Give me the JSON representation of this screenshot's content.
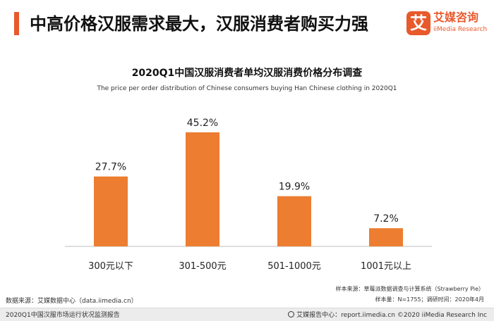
{
  "header": {
    "title": "中高价格汉服需求最大，汉服消费者购买力强",
    "accent_color": "#e8592b"
  },
  "logo": {
    "mark": "艾",
    "name_cn": "艾媒咨询",
    "name_en": "iiMedia Research"
  },
  "chart_data": {
    "type": "bar",
    "title": "2020Q1中国汉服消费者单均汉服消费价格分布调查",
    "subtitle": "The price per order distribution of Chinese consumers buying Han Chinese clothing in 2020Q1",
    "categories": [
      "300元以下",
      "301-500元",
      "501-1000元",
      "1001元以上"
    ],
    "values": [
      27.7,
      45.2,
      19.9,
      7.2
    ],
    "value_labels": [
      "27.7%",
      "45.2%",
      "19.9%",
      "7.2%"
    ],
    "unit": "%",
    "bar_color": "#ed7d31",
    "ylim": [
      0,
      45.2
    ],
    "grid": false,
    "legend": "none"
  },
  "notes": {
    "sample_source": "样本来源：草莓派数据调查与计算系统（Strawberry Pie）",
    "sample_size": "样本量：N=1755；调研时间：2020年4月"
  },
  "source": "数据来源：艾媒数据中心（data.iimedia.cn）",
  "footer": {
    "report_name": "2020Q1中国汉服市场运行状况监测报告",
    "site": "艾媒报告中心：report.iimedia.cn",
    "copyright": "©2020  iiMedia Research  Inc"
  }
}
